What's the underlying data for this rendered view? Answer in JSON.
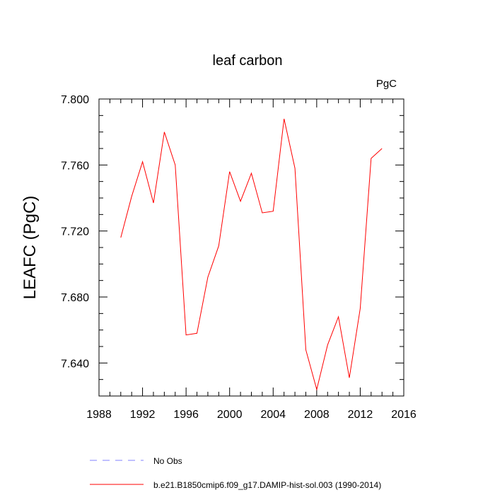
{
  "chart_data": {
    "type": "line",
    "title": "leaf carbon",
    "units_label": "PgC",
    "ylabel": "LEAFC  (PgC)",
    "xlabel": "",
    "xlim": [
      1988,
      2016
    ],
    "ylim": [
      7.62,
      7.8
    ],
    "x_ticks": [
      1988,
      1992,
      1996,
      2000,
      2004,
      2008,
      2012,
      2016
    ],
    "y_ticks": [
      "7.640",
      "7.680",
      "7.720",
      "7.760",
      "7.800"
    ],
    "series": [
      {
        "name": "b.e21.B1850cmip6.f09_g17.DAMIP-hist-sol.003 (1990-2014)",
        "color": "#ff0000",
        "x": [
          1990,
          1991,
          1992,
          1993,
          1994,
          1995,
          1996,
          1997,
          1998,
          1999,
          2000,
          2001,
          2002,
          2003,
          2004,
          2005,
          2006,
          2007,
          2008,
          2009,
          2010,
          2011,
          2012,
          2013,
          2014
        ],
        "y": [
          7.716,
          7.741,
          7.762,
          7.737,
          7.78,
          7.76,
          7.657,
          7.658,
          7.692,
          7.711,
          7.756,
          7.738,
          7.755,
          7.731,
          7.732,
          7.788,
          7.758,
          7.648,
          7.624,
          7.651,
          7.668,
          7.631,
          7.673,
          7.764,
          7.77
        ]
      }
    ],
    "legend": [
      {
        "label": "No Obs",
        "color": "#8080ff",
        "style": "dashed"
      },
      {
        "label": "b.e21.B1850cmip6.f09_g17.DAMIP-hist-sol.003 (1990-2014)",
        "color": "#ff0000",
        "style": "solid"
      }
    ],
    "grid": false,
    "legend_placement": "bottom"
  }
}
